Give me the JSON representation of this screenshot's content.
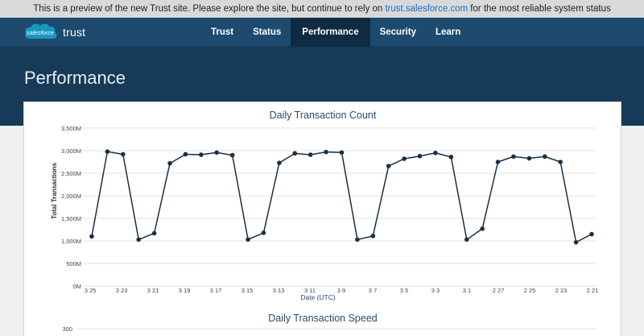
{
  "banner": {
    "text_before": "This is a preview of the new Trust site. Please explore the site, but continue to rely on",
    "link": "trust.salesforce.com",
    "text_after": "for the most reliable system status"
  },
  "brand": {
    "logo_text": "salesforce",
    "product": "trust"
  },
  "nav": {
    "items": [
      {
        "label": "Trust"
      },
      {
        "label": "Status"
      },
      {
        "label": "Performance",
        "active": true
      },
      {
        "label": "Security"
      },
      {
        "label": "Learn"
      }
    ]
  },
  "page": {
    "title": "Performance"
  },
  "colors": {
    "line": "#1b2f45",
    "accent_link": "#1a6fc4",
    "nav_bg": "#1d4a6e"
  },
  "chart_data": [
    {
      "type": "line",
      "title": "Daily Transaction Count",
      "xlabel": "Date (UTC)",
      "ylabel": "Total Transactions",
      "ylim": [
        0,
        3500
      ],
      "yticks": [
        "0M",
        "500M",
        "1,000M",
        "1,500M",
        "2,000M",
        "2,500M",
        "3,000M",
        "3,500M"
      ],
      "ytick_values": [
        0,
        500,
        1000,
        1500,
        2000,
        2500,
        3000,
        3500
      ],
      "xticks": [
        "3 25",
        "3 23",
        "3 21",
        "3 19",
        "3 17",
        "3 15",
        "3 13",
        "3 11",
        "3 9",
        "3 7",
        "3 5",
        "3 3",
        "3 1",
        "2 27",
        "2 25",
        "2 23",
        "2 21"
      ],
      "grid": true,
      "series": [
        {
          "values": [
            1100,
            2980,
            2920,
            1030,
            1170,
            2720,
            2920,
            2910,
            2960,
            2900,
            1030,
            1180,
            2730,
            2940,
            2910,
            2970,
            2960,
            1030,
            1110,
            2660,
            2820,
            2880,
            2950,
            2860,
            1030,
            1270,
            2750,
            2870,
            2830,
            2870,
            2750,
            970,
            1150
          ]
        }
      ]
    },
    {
      "type": "line",
      "title": "Daily Transaction Speed",
      "yticks": [
        "300"
      ],
      "ytick_values": [
        300
      ]
    }
  ]
}
